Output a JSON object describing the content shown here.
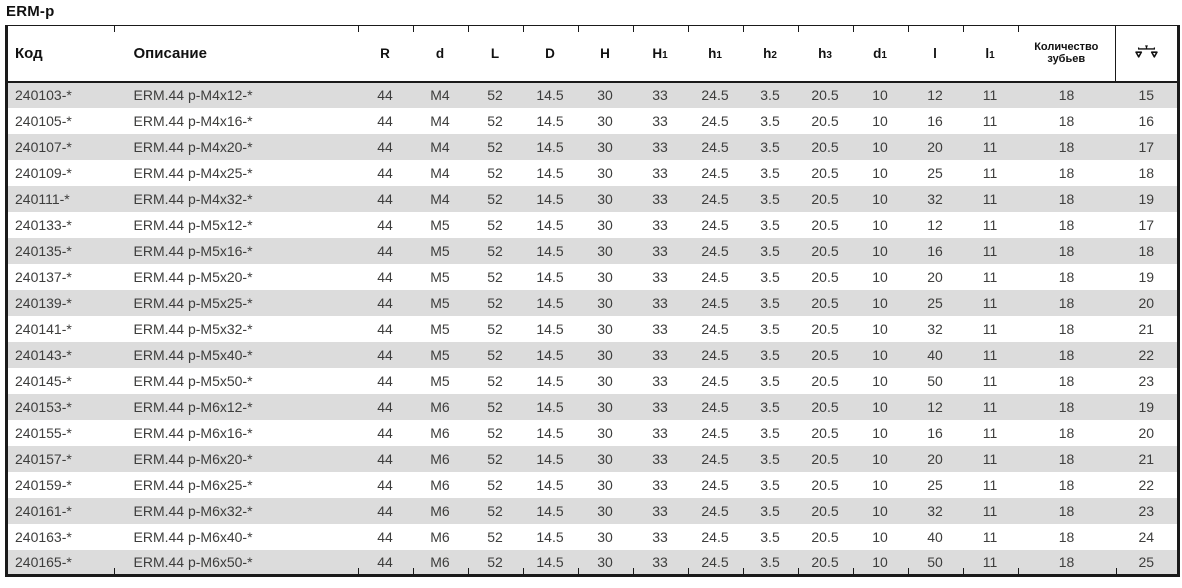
{
  "title": "ERM-p",
  "colors": {
    "background": "#ffffff",
    "stripe_row": "#dcdcdc",
    "border": "#1a1a1a",
    "body_text": "#3d3d3c",
    "header_text": "#111111"
  },
  "table": {
    "columns": [
      {
        "key": "code",
        "label": "Код"
      },
      {
        "key": "description",
        "label": "Описание"
      },
      {
        "key": "R",
        "label": "R"
      },
      {
        "key": "d",
        "label": "d"
      },
      {
        "key": "L",
        "label": "L"
      },
      {
        "key": "D",
        "label": "D"
      },
      {
        "key": "H",
        "label": "H"
      },
      {
        "key": "H1",
        "label": "H",
        "sub": "1"
      },
      {
        "key": "h1",
        "label": "h",
        "sub": "1"
      },
      {
        "key": "h2",
        "label": "h",
        "sub": "2"
      },
      {
        "key": "h3",
        "label": "h",
        "sub": "3"
      },
      {
        "key": "d1",
        "label": "d",
        "sub": "1"
      },
      {
        "key": "l",
        "label": "l"
      },
      {
        "key": "l1",
        "label": "l",
        "sub": "1"
      },
      {
        "key": "teeth-count",
        "label": "Количество зубьев"
      },
      {
        "key": "weight-kg",
        "label": "",
        "icon": "balance-scale-icon"
      }
    ],
    "rows": [
      [
        "240103-*",
        "ERM.44 p-M4x12-*",
        "44",
        "M4",
        "52",
        "14.5",
        "30",
        "33",
        "24.5",
        "3.5",
        "20.5",
        "10",
        "12",
        "11",
        "18",
        "15"
      ],
      [
        "240105-*",
        "ERM.44 p-M4x16-*",
        "44",
        "M4",
        "52",
        "14.5",
        "30",
        "33",
        "24.5",
        "3.5",
        "20.5",
        "10",
        "16",
        "11",
        "18",
        "16"
      ],
      [
        "240107-*",
        "ERM.44 p-M4x20-*",
        "44",
        "M4",
        "52",
        "14.5",
        "30",
        "33",
        "24.5",
        "3.5",
        "20.5",
        "10",
        "20",
        "11",
        "18",
        "17"
      ],
      [
        "240109-*",
        "ERM.44 p-M4x25-*",
        "44",
        "M4",
        "52",
        "14.5",
        "30",
        "33",
        "24.5",
        "3.5",
        "20.5",
        "10",
        "25",
        "11",
        "18",
        "18"
      ],
      [
        "240111-*",
        "ERM.44 p-M4x32-*",
        "44",
        "M4",
        "52",
        "14.5",
        "30",
        "33",
        "24.5",
        "3.5",
        "20.5",
        "10",
        "32",
        "11",
        "18",
        "19"
      ],
      [
        "240133-*",
        "ERM.44 p-M5x12-*",
        "44",
        "M5",
        "52",
        "14.5",
        "30",
        "33",
        "24.5",
        "3.5",
        "20.5",
        "10",
        "12",
        "11",
        "18",
        "17"
      ],
      [
        "240135-*",
        "ERM.44 p-M5x16-*",
        "44",
        "M5",
        "52",
        "14.5",
        "30",
        "33",
        "24.5",
        "3.5",
        "20.5",
        "10",
        "16",
        "11",
        "18",
        "18"
      ],
      [
        "240137-*",
        "ERM.44 p-M5x20-*",
        "44",
        "M5",
        "52",
        "14.5",
        "30",
        "33",
        "24.5",
        "3.5",
        "20.5",
        "10",
        "20",
        "11",
        "18",
        "19"
      ],
      [
        "240139-*",
        "ERM.44 p-M5x25-*",
        "44",
        "M5",
        "52",
        "14.5",
        "30",
        "33",
        "24.5",
        "3.5",
        "20.5",
        "10",
        "25",
        "11",
        "18",
        "20"
      ],
      [
        "240141-*",
        "ERM.44 p-M5x32-*",
        "44",
        "M5",
        "52",
        "14.5",
        "30",
        "33",
        "24.5",
        "3.5",
        "20.5",
        "10",
        "32",
        "11",
        "18",
        "21"
      ],
      [
        "240143-*",
        "ERM.44 p-M5x40-*",
        "44",
        "M5",
        "52",
        "14.5",
        "30",
        "33",
        "24.5",
        "3.5",
        "20.5",
        "10",
        "40",
        "11",
        "18",
        "22"
      ],
      [
        "240145-*",
        "ERM.44 p-M5x50-*",
        "44",
        "M5",
        "52",
        "14.5",
        "30",
        "33",
        "24.5",
        "3.5",
        "20.5",
        "10",
        "50",
        "11",
        "18",
        "23"
      ],
      [
        "240153-*",
        "ERM.44 p-M6x12-*",
        "44",
        "M6",
        "52",
        "14.5",
        "30",
        "33",
        "24.5",
        "3.5",
        "20.5",
        "10",
        "12",
        "11",
        "18",
        "19"
      ],
      [
        "240155-*",
        "ERM.44 p-M6x16-*",
        "44",
        "M6",
        "52",
        "14.5",
        "30",
        "33",
        "24.5",
        "3.5",
        "20.5",
        "10",
        "16",
        "11",
        "18",
        "20"
      ],
      [
        "240157-*",
        "ERM.44 p-M6x20-*",
        "44",
        "M6",
        "52",
        "14.5",
        "30",
        "33",
        "24.5",
        "3.5",
        "20.5",
        "10",
        "20",
        "11",
        "18",
        "21"
      ],
      [
        "240159-*",
        "ERM.44 p-M6x25-*",
        "44",
        "M6",
        "52",
        "14.5",
        "30",
        "33",
        "24.5",
        "3.5",
        "20.5",
        "10",
        "25",
        "11",
        "18",
        "22"
      ],
      [
        "240161-*",
        "ERM.44 p-M6x32-*",
        "44",
        "M6",
        "52",
        "14.5",
        "30",
        "33",
        "24.5",
        "3.5",
        "20.5",
        "10",
        "32",
        "11",
        "18",
        "23"
      ],
      [
        "240163-*",
        "ERM.44 p-M6x40-*",
        "44",
        "M6",
        "52",
        "14.5",
        "30",
        "33",
        "24.5",
        "3.5",
        "20.5",
        "10",
        "40",
        "11",
        "18",
        "24"
      ],
      [
        "240165-*",
        "ERM.44 p-M6x50-*",
        "44",
        "M6",
        "52",
        "14.5",
        "30",
        "33",
        "24.5",
        "3.5",
        "20.5",
        "10",
        "50",
        "11",
        "18",
        "25"
      ]
    ]
  }
}
